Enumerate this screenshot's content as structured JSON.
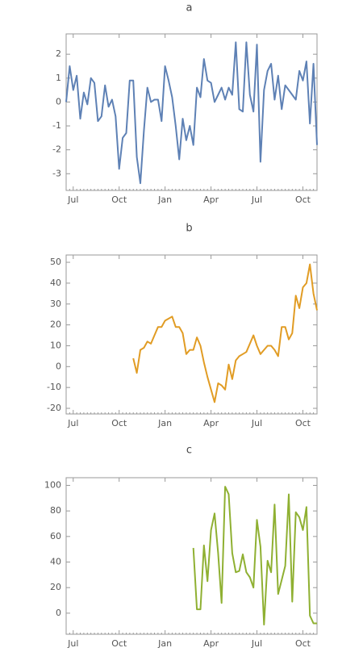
{
  "chart_data": [
    {
      "type": "line",
      "title": "a",
      "categories": [
        null,
        null,
        "Jul",
        null,
        null,
        null,
        null,
        null,
        null,
        null,
        null,
        null,
        null,
        null,
        null,
        "Oct",
        null,
        null,
        null,
        null,
        null,
        null,
        null,
        null,
        null,
        null,
        null,
        null,
        "Jan",
        null,
        null,
        null,
        null,
        null,
        null,
        null,
        null,
        null,
        null,
        null,
        null,
        "Apr",
        null,
        null,
        null,
        null,
        null,
        null,
        null,
        null,
        null,
        null,
        null,
        null,
        "Jul",
        null,
        null,
        null,
        null,
        null,
        null,
        null,
        null,
        null,
        null,
        null,
        null,
        "Oct",
        null,
        null,
        null,
        null
      ],
      "values": [
        0.0,
        1.5,
        0.5,
        1.1,
        -0.7,
        0.4,
        -0.1,
        1.0,
        0.8,
        -0.8,
        -0.6,
        0.7,
        -0.2,
        0.1,
        -0.6,
        -2.8,
        -1.5,
        -1.3,
        0.9,
        0.9,
        -2.3,
        -3.4,
        -1.2,
        0.6,
        0.0,
        0.1,
        0.1,
        -0.8,
        1.5,
        0.9,
        0.2,
        -1.0,
        -2.4,
        -0.7,
        -1.6,
        -1.0,
        -1.8,
        0.6,
        0.2,
        1.8,
        0.9,
        0.8,
        0.0,
        0.3,
        0.6,
        0.1,
        0.6,
        0.3,
        2.5,
        -0.3,
        -0.4,
        2.5,
        0.3,
        -0.4,
        2.4,
        -2.5,
        0.5,
        1.3,
        1.6,
        0.1,
        1.1,
        -0.3,
        0.7,
        0.5,
        0.3,
        0.1,
        1.3,
        0.9,
        1.7,
        -0.9,
        1.6,
        -1.8
      ],
      "color": "#5e81b5",
      "ylim": [
        -3.7,
        2.85
      ],
      "yticks": [
        -3,
        -2,
        -1,
        0,
        1,
        2
      ]
    },
    {
      "type": "line",
      "title": "b",
      "categories": [
        null,
        null,
        "Jul",
        null,
        null,
        null,
        null,
        null,
        null,
        null,
        null,
        null,
        null,
        null,
        null,
        "Oct",
        null,
        null,
        null,
        null,
        null,
        null,
        null,
        null,
        null,
        null,
        null,
        null,
        "Jan",
        null,
        null,
        null,
        null,
        null,
        null,
        null,
        null,
        null,
        null,
        null,
        null,
        "Apr",
        null,
        null,
        null,
        null,
        null,
        null,
        null,
        null,
        null,
        null,
        null,
        null,
        "Jul",
        null,
        null,
        null,
        null,
        null,
        null,
        null,
        null,
        null,
        null,
        null,
        null,
        "Oct",
        null,
        null,
        null,
        null
      ],
      "values": [
        null,
        null,
        null,
        null,
        null,
        null,
        null,
        null,
        null,
        null,
        null,
        null,
        null,
        null,
        null,
        null,
        null,
        null,
        null,
        4,
        -3,
        8,
        9,
        12,
        11,
        15,
        19,
        19,
        22,
        23,
        24,
        19,
        19,
        16,
        6,
        8,
        8,
        14,
        10,
        2,
        -5,
        -11,
        -17,
        -8,
        -9,
        -11,
        1,
        -6,
        3,
        5,
        6,
        7,
        11,
        15,
        10,
        6,
        8,
        10,
        10,
        8,
        5,
        19,
        19,
        13,
        16,
        34,
        28,
        38,
        40,
        49,
        35,
        27
      ],
      "color": "#e19c24",
      "ylim": [
        -22.7,
        53.5
      ],
      "yticks": [
        -20,
        -10,
        0,
        10,
        20,
        30,
        40,
        50
      ]
    },
    {
      "type": "line",
      "title": "c",
      "categories": [
        null,
        null,
        "Jul",
        null,
        null,
        null,
        null,
        null,
        null,
        null,
        null,
        null,
        null,
        null,
        null,
        "Oct",
        null,
        null,
        null,
        null,
        null,
        null,
        null,
        null,
        null,
        null,
        null,
        null,
        "Jan",
        null,
        null,
        null,
        null,
        null,
        null,
        null,
        null,
        null,
        null,
        null,
        null,
        "Apr",
        null,
        null,
        null,
        null,
        null,
        null,
        null,
        null,
        null,
        null,
        null,
        null,
        "Jul",
        null,
        null,
        null,
        null,
        null,
        null,
        null,
        null,
        null,
        null,
        null,
        null,
        "Oct",
        null,
        null,
        null,
        null
      ],
      "values": [
        null,
        null,
        null,
        null,
        null,
        null,
        null,
        null,
        null,
        null,
        null,
        null,
        null,
        null,
        null,
        null,
        null,
        null,
        null,
        null,
        null,
        null,
        null,
        null,
        null,
        null,
        null,
        null,
        null,
        null,
        null,
        null,
        null,
        null,
        null,
        null,
        51,
        3,
        3,
        53,
        25,
        65,
        78,
        47,
        8,
        99,
        93,
        47,
        32,
        33,
        46,
        32,
        28,
        20,
        73,
        52,
        -9,
        41,
        32,
        85,
        15,
        26,
        37,
        93,
        9,
        79,
        75,
        65,
        83,
        -2,
        -8,
        -8
      ],
      "color": "#8fb032",
      "ylim": [
        -16.5,
        106
      ],
      "yticks": [
        0,
        20,
        40,
        60,
        80,
        100
      ]
    }
  ]
}
